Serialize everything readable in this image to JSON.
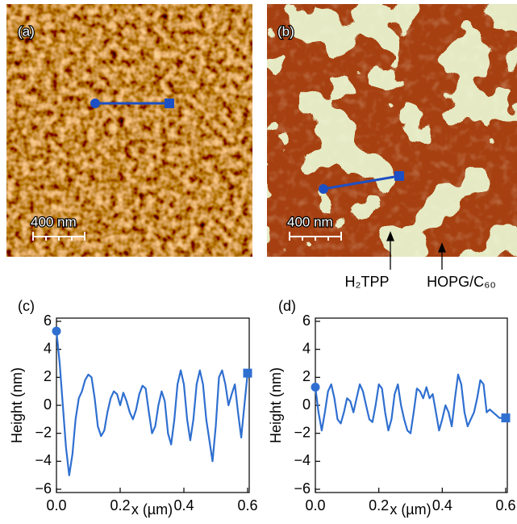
{
  "images": [
    {
      "label": "(a)",
      "scale_bar": "400 nm"
    },
    {
      "label": "(b)",
      "scale_bar": "400 nm",
      "annotations": [
        "H₂TPP",
        "HOPG/C₆₀"
      ]
    }
  ],
  "chart_data": [
    {
      "type": "line",
      "panel": "(c)",
      "x_label": "x (µm)",
      "y_label": "Height (nm)",
      "xlim": [
        0,
        0.6
      ],
      "ylim": [
        -6,
        6
      ],
      "xticks": [
        {
          "value": 0,
          "label": "0.0"
        },
        0.2,
        0.4,
        0.6
      ],
      "yticks": [
        {
          "value": -6,
          "label": "−6"
        },
        {
          "value": -4,
          "label": "−4"
        },
        {
          "value": -2,
          "label": "−2"
        },
        0,
        2,
        4,
        6
      ],
      "x": [
        0,
        0.01,
        0.02,
        0.03,
        0.04,
        0.05,
        0.06,
        0.07,
        0.08,
        0.09,
        0.1,
        0.11,
        0.12,
        0.13,
        0.14,
        0.15,
        0.16,
        0.17,
        0.18,
        0.19,
        0.2,
        0.21,
        0.22,
        0.23,
        0.24,
        0.25,
        0.26,
        0.27,
        0.28,
        0.29,
        0.3,
        0.31,
        0.32,
        0.33,
        0.34,
        0.35,
        0.36,
        0.37,
        0.38,
        0.39,
        0.4,
        0.41,
        0.42,
        0.43,
        0.44,
        0.45,
        0.46,
        0.47,
        0.48,
        0.49,
        0.5,
        0.51,
        0.52,
        0.53,
        0.54,
        0.55,
        0.56,
        0.57,
        0.58,
        0.59,
        0.6
      ],
      "series": [
        {
          "color": "#2f6fd0",
          "values": [
            5.3,
            3,
            0,
            -3,
            -5,
            -3.5,
            -1,
            0.5,
            1,
            1.8,
            2.2,
            2,
            0.5,
            -1.5,
            -2.2,
            -1.8,
            -0.5,
            0.5,
            1,
            0.8,
            0,
            0.9,
            0.3,
            -0.5,
            -1,
            -0.3,
            0.8,
            1.4,
            1.2,
            -0.5,
            -2,
            -1.5,
            0,
            1,
            0.3,
            -2,
            -2.8,
            -1,
            1.5,
            2.5,
            1.5,
            -1,
            -2.5,
            -1,
            1.5,
            2.5,
            1.5,
            -1,
            -2.5,
            -4,
            -1.5,
            2,
            2.5,
            1.5,
            0,
            0.8,
            1.5,
            -0.5,
            -2.3,
            0,
            2.3
          ]
        }
      ]
    },
    {
      "type": "line",
      "panel": "(d)",
      "x_label": "x (µm)",
      "y_label": "Height (nm)",
      "xlim": [
        0,
        0.6
      ],
      "ylim": [
        -6,
        6
      ],
      "xticks": [
        {
          "value": 0,
          "label": "0.0"
        },
        0.2,
        0.4,
        0.6
      ],
      "yticks": [
        {
          "value": -6,
          "label": "−6"
        },
        {
          "value": -4,
          "label": "−4"
        },
        {
          "value": -2,
          "label": "−2"
        },
        0,
        2,
        4,
        6
      ],
      "x": [
        0,
        0.01,
        0.02,
        0.03,
        0.04,
        0.05,
        0.06,
        0.07,
        0.08,
        0.09,
        0.1,
        0.11,
        0.12,
        0.13,
        0.14,
        0.15,
        0.16,
        0.17,
        0.18,
        0.19,
        0.2,
        0.21,
        0.22,
        0.23,
        0.24,
        0.25,
        0.26,
        0.27,
        0.28,
        0.29,
        0.3,
        0.31,
        0.32,
        0.33,
        0.34,
        0.35,
        0.36,
        0.37,
        0.38,
        0.39,
        0.4,
        0.41,
        0.42,
        0.43,
        0.44,
        0.45,
        0.46,
        0.47,
        0.48,
        0.49,
        0.5,
        0.51,
        0.52,
        0.53,
        0.54,
        0.55,
        0.56,
        0.57,
        0.58,
        0.59,
        0.6
      ],
      "series": [
        {
          "color": "#2f6fd0",
          "values": [
            1.3,
            -0.5,
            -1.8,
            -0.5,
            1,
            1.5,
            0.5,
            -1,
            -1.3,
            -0.5,
            0.5,
            0.3,
            -0.5,
            0.5,
            1.5,
            1,
            0,
            -1,
            -1.2,
            0,
            1.5,
            1.2,
            -0.5,
            -1.8,
            -1,
            0.8,
            1.5,
            0,
            -1,
            -1.8,
            -2,
            -0.5,
            1.2,
            1,
            0.5,
            1.3,
            0.5,
            0.8,
            -0.5,
            -1.8,
            -1,
            0,
            -0.5,
            -1.5,
            0.5,
            2.2,
            1.5,
            -0.5,
            -1.5,
            -1,
            -0.5,
            0.5,
            1.8,
            1.5,
            -0.5,
            -0.3,
            -0.5,
            -0.7,
            -0.9,
            -0.9,
            -0.9
          ]
        }
      ]
    }
  ]
}
